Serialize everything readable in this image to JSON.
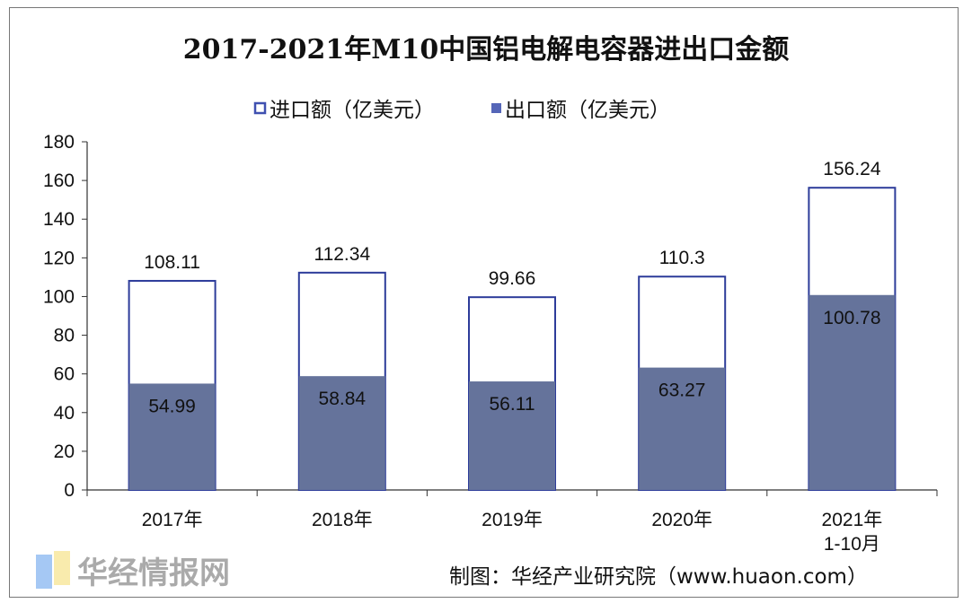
{
  "chart_data": {
    "type": "bar",
    "title": "2017-2021年M10中国铝电解电容器进出口金额",
    "categories": [
      "2017年",
      "2018年",
      "2019年",
      "2020年",
      "2021年\n1-10月"
    ],
    "category_lines": [
      [
        "2017年"
      ],
      [
        "2018年"
      ],
      [
        "2019年"
      ],
      [
        "2020年"
      ],
      [
        "2021年",
        "1-10月"
      ]
    ],
    "series": [
      {
        "name": "进口额（亿美元）",
        "values": [
          108.11,
          112.34,
          99.66,
          110.3,
          156.24
        ],
        "style": "outline",
        "color": "#2d3c9a"
      },
      {
        "name": "出口额（亿美元）",
        "values": [
          54.99,
          58.84,
          56.11,
          63.27,
          100.78
        ],
        "style": "filled",
        "color": "#65739b"
      }
    ],
    "data_labels": {
      "import": [
        "108.11",
        "112.34",
        "99.66",
        "110.3",
        "156.24"
      ],
      "export": [
        "54.99",
        "58.84",
        "56.11",
        "63.27",
        "100.78"
      ]
    },
    "ylim": [
      0,
      180
    ],
    "yticks": [
      0,
      20,
      40,
      60,
      80,
      100,
      120,
      140,
      160,
      180
    ],
    "xlabel": "",
    "ylabel": "",
    "grid": false,
    "legend_position": "top",
    "bar_mode": "overlap"
  },
  "source": "制图：华经产业研究院（www.huaon.com）",
  "watermark": "华经情报网"
}
